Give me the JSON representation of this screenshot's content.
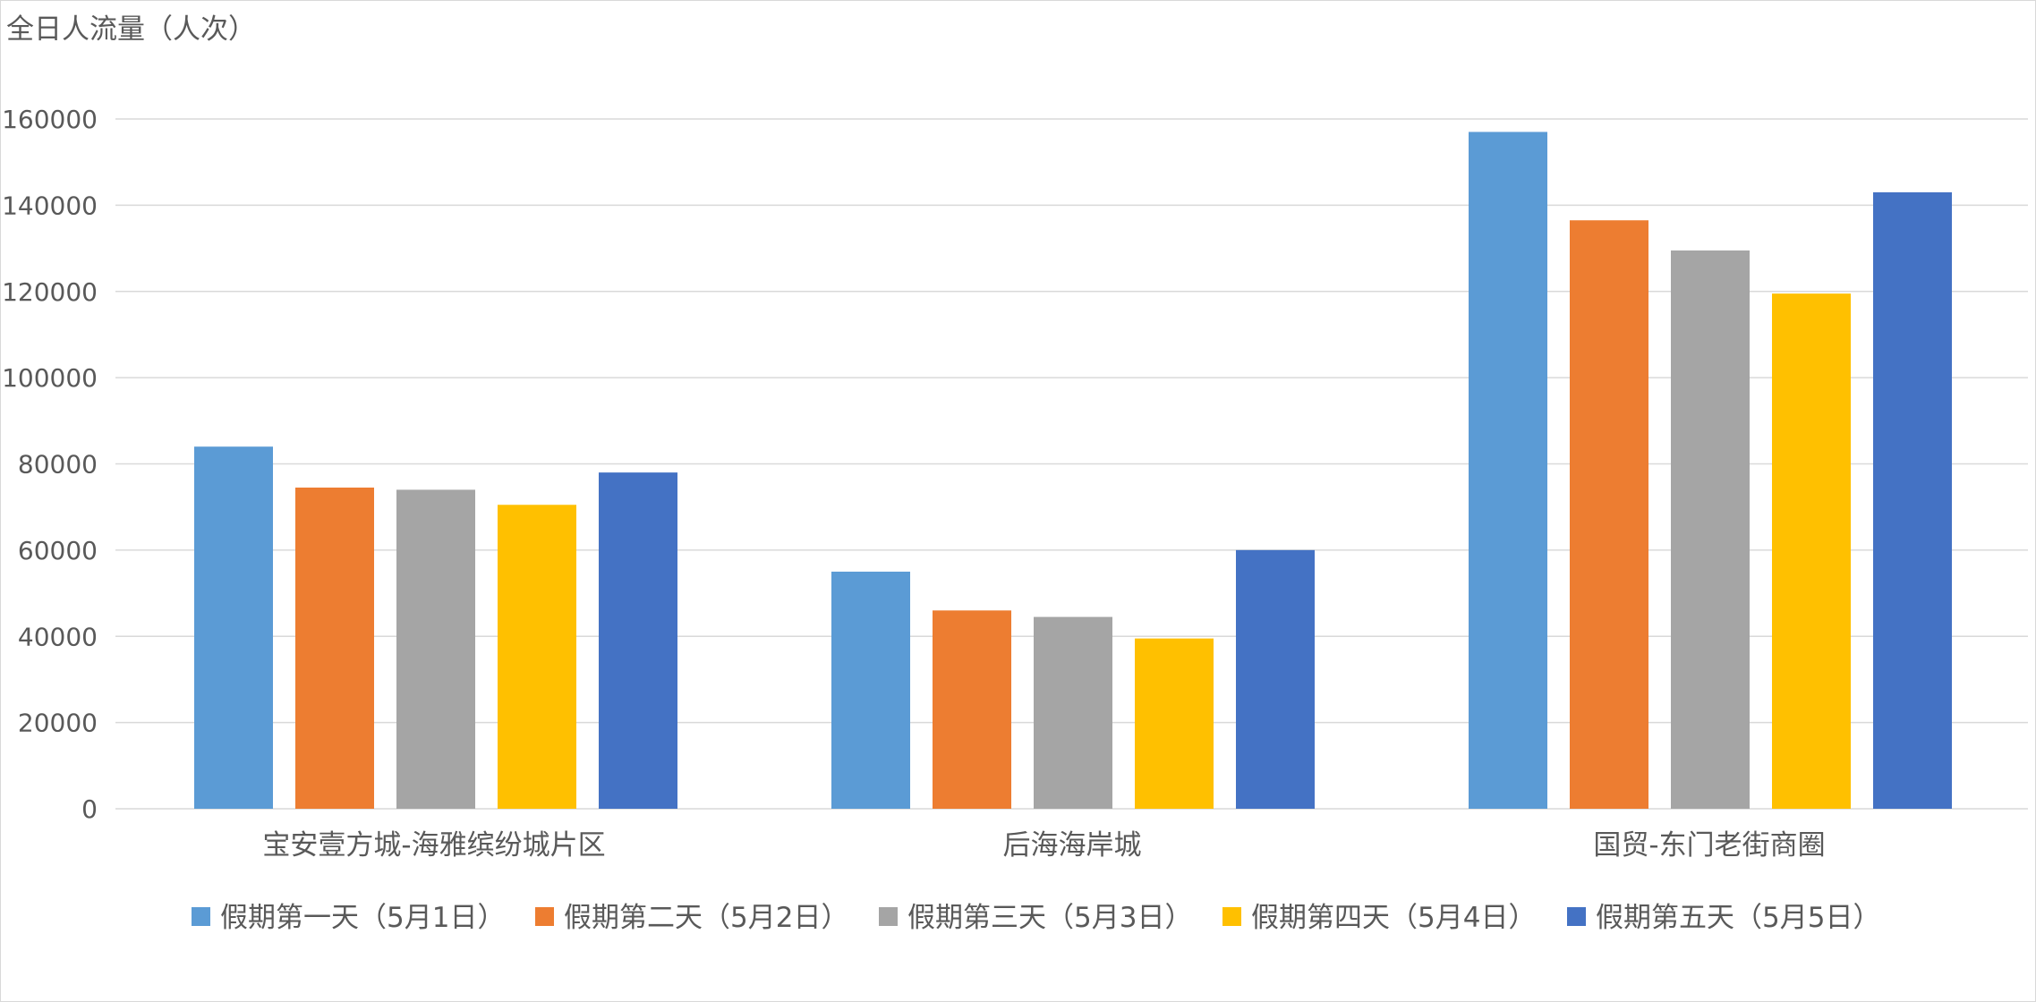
{
  "chart_data": {
    "type": "bar",
    "ylabel": "全日人流量（人次）",
    "ylim": [
      0,
      170000
    ],
    "yticks": [
      0,
      20000,
      40000,
      60000,
      80000,
      100000,
      120000,
      140000,
      160000
    ],
    "ytick_labels": [
      "0",
      "20000",
      "40000",
      "60000",
      "80000",
      "100000",
      "120000",
      "140000",
      "160000"
    ],
    "grid": true,
    "legend_position": "bottom",
    "categories": [
      "宝安壹方城-海雅缤纷城片区",
      "后海海岸城",
      "国贸-东门老街商圈"
    ],
    "series": [
      {
        "name": "假期第一天（5月1日）",
        "color": "#5B9BD5",
        "values": [
          84000,
          55000,
          157000
        ]
      },
      {
        "name": "假期第二天（5月2日）",
        "color": "#ED7D31",
        "values": [
          74500,
          46000,
          136500
        ]
      },
      {
        "name": "假期第三天（5月3日）",
        "color": "#A5A5A5",
        "values": [
          74000,
          44500,
          129500
        ]
      },
      {
        "name": "假期第四天（5月4日）",
        "color": "#FFC000",
        "values": [
          70500,
          39500,
          119500
        ]
      },
      {
        "name": "假期第五天（5月5日）",
        "color": "#4472C4",
        "values": [
          78000,
          60000,
          143000
        ]
      }
    ]
  }
}
